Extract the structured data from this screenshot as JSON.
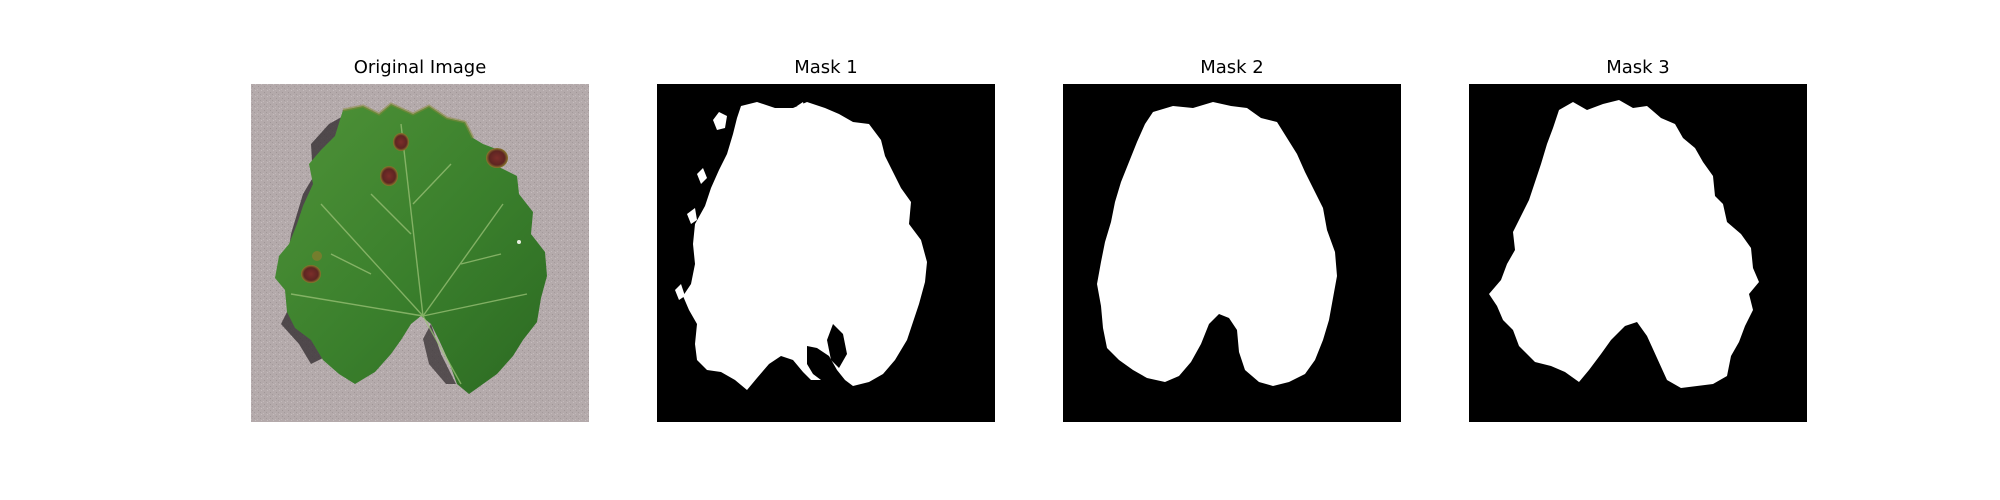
{
  "figure": {
    "panels": [
      {
        "title": "Original Image",
        "kind": "photo"
      },
      {
        "title": "Mask 1",
        "kind": "mask"
      },
      {
        "title": "Mask 2",
        "kind": "mask"
      },
      {
        "title": "Mask 3",
        "kind": "mask"
      }
    ]
  },
  "colors": {
    "mask_background": "#000000",
    "mask_foreground": "#ffffff",
    "photo_background": "#b2a8a9",
    "leaf_dark": "#2c6a22",
    "leaf_mid": "#3f8530",
    "leaf_light": "#5a9d3e",
    "lesion": "#6e2a25",
    "shadow": "#3a3436"
  }
}
